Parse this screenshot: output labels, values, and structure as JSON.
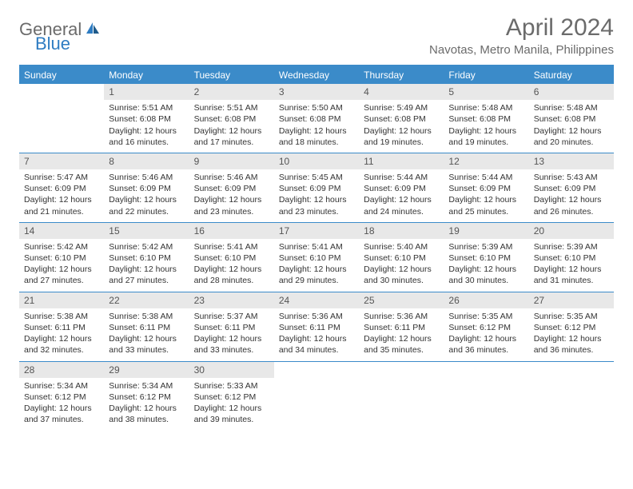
{
  "logo": {
    "text1": "General",
    "text2": "Blue"
  },
  "title": "April 2024",
  "location": "Navotas, Metro Manila, Philippines",
  "colors": {
    "header_bg": "#3b8bc9",
    "header_text": "#ffffff",
    "daynum_bg": "#e8e8e8",
    "text": "#333333",
    "logo_gray": "#6b6b6b",
    "logo_blue": "#2e7cc2"
  },
  "dow": [
    "Sunday",
    "Monday",
    "Tuesday",
    "Wednesday",
    "Thursday",
    "Friday",
    "Saturday"
  ],
  "days": [
    {
      "n": "",
      "sr": "",
      "ss": "",
      "dl": ""
    },
    {
      "n": "1",
      "sr": "Sunrise: 5:51 AM",
      "ss": "Sunset: 6:08 PM",
      "dl": "Daylight: 12 hours and 16 minutes."
    },
    {
      "n": "2",
      "sr": "Sunrise: 5:51 AM",
      "ss": "Sunset: 6:08 PM",
      "dl": "Daylight: 12 hours and 17 minutes."
    },
    {
      "n": "3",
      "sr": "Sunrise: 5:50 AM",
      "ss": "Sunset: 6:08 PM",
      "dl": "Daylight: 12 hours and 18 minutes."
    },
    {
      "n": "4",
      "sr": "Sunrise: 5:49 AM",
      "ss": "Sunset: 6:08 PM",
      "dl": "Daylight: 12 hours and 19 minutes."
    },
    {
      "n": "5",
      "sr": "Sunrise: 5:48 AM",
      "ss": "Sunset: 6:08 PM",
      "dl": "Daylight: 12 hours and 19 minutes."
    },
    {
      "n": "6",
      "sr": "Sunrise: 5:48 AM",
      "ss": "Sunset: 6:08 PM",
      "dl": "Daylight: 12 hours and 20 minutes."
    },
    {
      "n": "7",
      "sr": "Sunrise: 5:47 AM",
      "ss": "Sunset: 6:09 PM",
      "dl": "Daylight: 12 hours and 21 minutes."
    },
    {
      "n": "8",
      "sr": "Sunrise: 5:46 AM",
      "ss": "Sunset: 6:09 PM",
      "dl": "Daylight: 12 hours and 22 minutes."
    },
    {
      "n": "9",
      "sr": "Sunrise: 5:46 AM",
      "ss": "Sunset: 6:09 PM",
      "dl": "Daylight: 12 hours and 23 minutes."
    },
    {
      "n": "10",
      "sr": "Sunrise: 5:45 AM",
      "ss": "Sunset: 6:09 PM",
      "dl": "Daylight: 12 hours and 23 minutes."
    },
    {
      "n": "11",
      "sr": "Sunrise: 5:44 AM",
      "ss": "Sunset: 6:09 PM",
      "dl": "Daylight: 12 hours and 24 minutes."
    },
    {
      "n": "12",
      "sr": "Sunrise: 5:44 AM",
      "ss": "Sunset: 6:09 PM",
      "dl": "Daylight: 12 hours and 25 minutes."
    },
    {
      "n": "13",
      "sr": "Sunrise: 5:43 AM",
      "ss": "Sunset: 6:09 PM",
      "dl": "Daylight: 12 hours and 26 minutes."
    },
    {
      "n": "14",
      "sr": "Sunrise: 5:42 AM",
      "ss": "Sunset: 6:10 PM",
      "dl": "Daylight: 12 hours and 27 minutes."
    },
    {
      "n": "15",
      "sr": "Sunrise: 5:42 AM",
      "ss": "Sunset: 6:10 PM",
      "dl": "Daylight: 12 hours and 27 minutes."
    },
    {
      "n": "16",
      "sr": "Sunrise: 5:41 AM",
      "ss": "Sunset: 6:10 PM",
      "dl": "Daylight: 12 hours and 28 minutes."
    },
    {
      "n": "17",
      "sr": "Sunrise: 5:41 AM",
      "ss": "Sunset: 6:10 PM",
      "dl": "Daylight: 12 hours and 29 minutes."
    },
    {
      "n": "18",
      "sr": "Sunrise: 5:40 AM",
      "ss": "Sunset: 6:10 PM",
      "dl": "Daylight: 12 hours and 30 minutes."
    },
    {
      "n": "19",
      "sr": "Sunrise: 5:39 AM",
      "ss": "Sunset: 6:10 PM",
      "dl": "Daylight: 12 hours and 30 minutes."
    },
    {
      "n": "20",
      "sr": "Sunrise: 5:39 AM",
      "ss": "Sunset: 6:10 PM",
      "dl": "Daylight: 12 hours and 31 minutes."
    },
    {
      "n": "21",
      "sr": "Sunrise: 5:38 AM",
      "ss": "Sunset: 6:11 PM",
      "dl": "Daylight: 12 hours and 32 minutes."
    },
    {
      "n": "22",
      "sr": "Sunrise: 5:38 AM",
      "ss": "Sunset: 6:11 PM",
      "dl": "Daylight: 12 hours and 33 minutes."
    },
    {
      "n": "23",
      "sr": "Sunrise: 5:37 AM",
      "ss": "Sunset: 6:11 PM",
      "dl": "Daylight: 12 hours and 33 minutes."
    },
    {
      "n": "24",
      "sr": "Sunrise: 5:36 AM",
      "ss": "Sunset: 6:11 PM",
      "dl": "Daylight: 12 hours and 34 minutes."
    },
    {
      "n": "25",
      "sr": "Sunrise: 5:36 AM",
      "ss": "Sunset: 6:11 PM",
      "dl": "Daylight: 12 hours and 35 minutes."
    },
    {
      "n": "26",
      "sr": "Sunrise: 5:35 AM",
      "ss": "Sunset: 6:12 PM",
      "dl": "Daylight: 12 hours and 36 minutes."
    },
    {
      "n": "27",
      "sr": "Sunrise: 5:35 AM",
      "ss": "Sunset: 6:12 PM",
      "dl": "Daylight: 12 hours and 36 minutes."
    },
    {
      "n": "28",
      "sr": "Sunrise: 5:34 AM",
      "ss": "Sunset: 6:12 PM",
      "dl": "Daylight: 12 hours and 37 minutes."
    },
    {
      "n": "29",
      "sr": "Sunrise: 5:34 AM",
      "ss": "Sunset: 6:12 PM",
      "dl": "Daylight: 12 hours and 38 minutes."
    },
    {
      "n": "30",
      "sr": "Sunrise: 5:33 AM",
      "ss": "Sunset: 6:12 PM",
      "dl": "Daylight: 12 hours and 39 minutes."
    },
    {
      "n": "",
      "sr": "",
      "ss": "",
      "dl": ""
    },
    {
      "n": "",
      "sr": "",
      "ss": "",
      "dl": ""
    },
    {
      "n": "",
      "sr": "",
      "ss": "",
      "dl": ""
    },
    {
      "n": "",
      "sr": "",
      "ss": "",
      "dl": ""
    }
  ]
}
